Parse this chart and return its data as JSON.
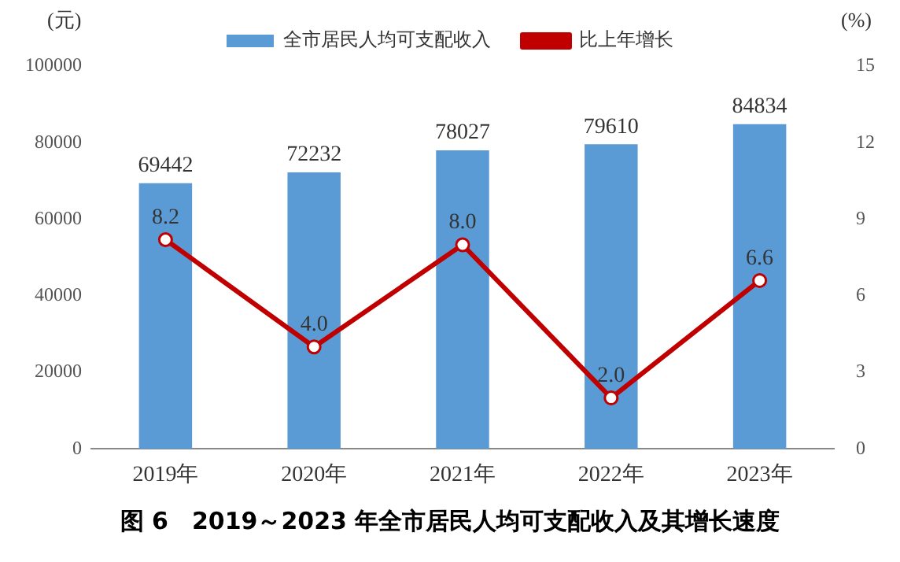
{
  "chart_data": {
    "type": "bar",
    "title": "图 6　2019～2023 年全市居民人均可支配收入及其增长速度",
    "ylabel": "(元)",
    "y2label": "(%)",
    "categories": [
      "2019年",
      "2020年",
      "2021年",
      "2022年",
      "2023年"
    ],
    "series": [
      {
        "name": "全市居民人均可支配收入",
        "color": "#5b9bd5",
        "values": [
          69442,
          72232,
          78027,
          79610,
          84834
        ],
        "value_labels": [
          "69442",
          "72232",
          "78027",
          "79610",
          "84834"
        ]
      },
      {
        "name": "比上年增长",
        "type": "line",
        "axis": "y2",
        "color": "#c00000",
        "marker": "circle",
        "values": [
          8.2,
          4.0,
          8.0,
          2.0,
          6.6
        ],
        "value_labels": [
          "8.2",
          "4.0",
          "8.0",
          "2.0",
          "6.6"
        ]
      }
    ],
    "ylim": [
      0,
      100000
    ],
    "yticks": [
      0,
      20000,
      40000,
      60000,
      80000,
      100000
    ],
    "y2lim": [
      0,
      15
    ],
    "y2ticks": [
      0,
      3,
      6,
      9,
      12,
      15
    ],
    "grid": false,
    "legend": "top"
  }
}
